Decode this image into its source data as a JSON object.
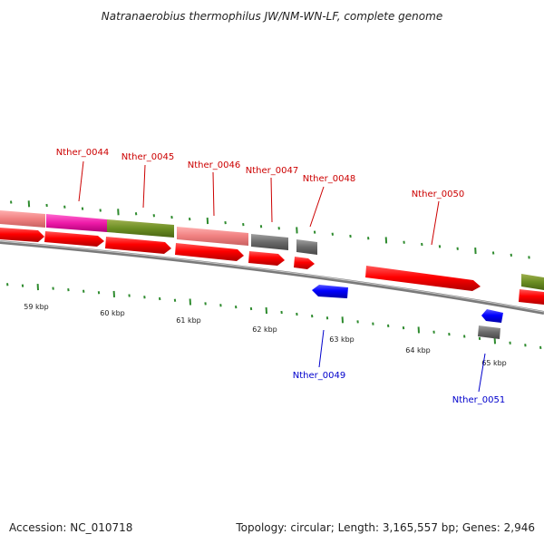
{
  "title": "Natranaerobius thermophilus JW/NM-WN-LF, complete genome",
  "footer": {
    "accession": "Accession: NC_010718",
    "summary": "Topology: circular; Length: 3,165,557 bp; Genes: 2,946"
  },
  "colors": {
    "forward_label": "#cc0000",
    "reverse_label": "#0000cc",
    "tick": "#2e8b2e",
    "backbone": "#8a8a8a"
  },
  "kbp_labels": [
    "59 kbp",
    "60 kbp",
    "61 kbp",
    "62 kbp",
    "63 kbp",
    "64 kbp",
    "65 kbp"
  ],
  "genes": [
    {
      "name": "Nther_0044",
      "strand": "forward"
    },
    {
      "name": "Nther_0045",
      "strand": "forward"
    },
    {
      "name": "Nther_0046",
      "strand": "forward"
    },
    {
      "name": "Nther_0047",
      "strand": "forward"
    },
    {
      "name": "Nther_0048",
      "strand": "forward"
    },
    {
      "name": "Nther_0049",
      "strand": "reverse"
    },
    {
      "name": "Nther_0050",
      "strand": "forward"
    },
    {
      "name": "Nther_0051",
      "strand": "reverse"
    }
  ],
  "feature_colors": [
    "pink",
    "magenta",
    "olive",
    "pink",
    "gray",
    "gray",
    "olive"
  ]
}
